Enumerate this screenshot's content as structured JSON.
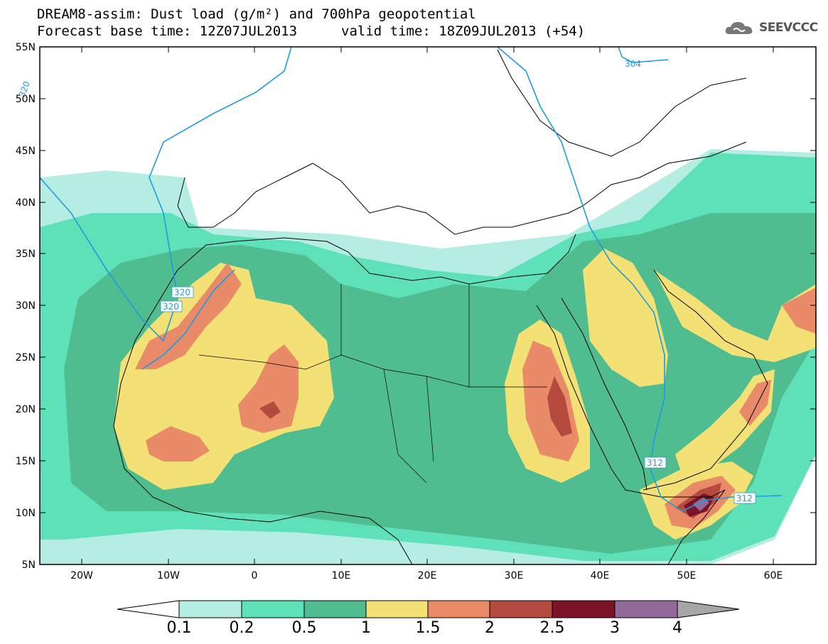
{
  "header": {
    "title": "DREAM8-assim: Dust load (g/m²) and 700hPa geopotential",
    "base_time": "Forecast base time: 12Z07JUL2013",
    "valid_time": "valid time: 18Z09JUL2013 (+54)"
  },
  "logo": {
    "text": "SEEVCCC",
    "icon": "cloud-icon"
  },
  "axes": {
    "lat_ticks": [
      "55N",
      "50N",
      "45N",
      "40N",
      "35N",
      "30N",
      "25N",
      "20N",
      "15N",
      "10N",
      "5N"
    ],
    "lon_ticks": [
      "20W",
      "10W",
      "0",
      "10E",
      "20E",
      "30E",
      "40E",
      "50E",
      "60E"
    ]
  },
  "contour_labels": [
    {
      "text": "320",
      "where": "northwest Atlantic"
    },
    {
      "text": "320",
      "where": "Morocco coast upper"
    },
    {
      "text": "320",
      "where": "Morocco coast lower"
    },
    {
      "text": "304",
      "where": "Caspian"
    },
    {
      "text": "312",
      "where": "Ethiopia"
    },
    {
      "text": "312",
      "where": "Somalia"
    }
  ],
  "colorbar": {
    "levels": [
      "0.1",
      "0.2",
      "0.5",
      "1",
      "1.5",
      "2",
      "2.5",
      "3",
      "4"
    ],
    "colors": [
      "#ffffff",
      "#b6ede3",
      "#5ee0b9",
      "#4fbd8f",
      "#f4e176",
      "#e98a68",
      "#b54a3e",
      "#7c1427",
      "#916a9a",
      "#a6a6a6"
    ]
  },
  "palette": {
    "ocean": "#ffffff",
    "c01": "#b6ede3",
    "c02": "#5ee0b9",
    "c05": "#4fbd8f",
    "c1": "#f4e176",
    "c15": "#e98a68",
    "c2": "#b54a3e",
    "c25": "#7c1427",
    "c3": "#916a9a",
    "contour": "#1e9ce0"
  }
}
